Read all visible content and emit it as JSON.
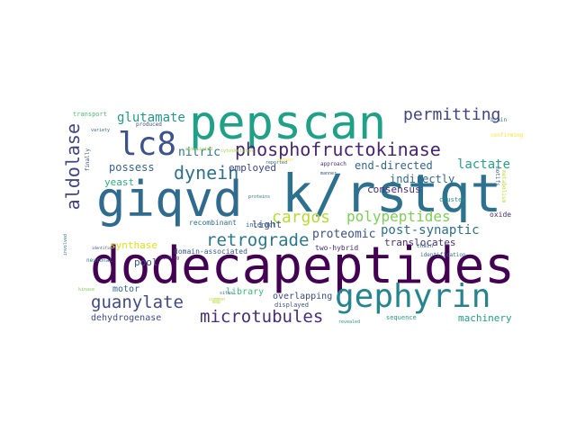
{
  "words": [
    {
      "text": "dodecapeptides",
      "color": "#440154"
    },
    {
      "text": "k/rstqt",
      "color": "#2c728e"
    },
    {
      "text": "giqvd",
      "color": "#2f6b8e"
    },
    {
      "text": "pepscan",
      "color": "#1fa187"
    },
    {
      "text": "gephyrin",
      "color": "#25858e"
    },
    {
      "text": "lc8",
      "color": "#3b528b"
    },
    {
      "text": "phosphofructokinase",
      "color": "#482475"
    },
    {
      "text": "aldolase",
      "color": "#414487"
    },
    {
      "text": "microtubules",
      "color": "#472d7b"
    },
    {
      "text": "retrograde",
      "color": "#2a788e"
    },
    {
      "text": "guanylate",
      "color": "#3e4a89"
    },
    {
      "text": "dynein",
      "color": "#2c728e"
    },
    {
      "text": "cargos",
      "color": "#b5de2b"
    },
    {
      "text": "permitting",
      "color": "#414487"
    },
    {
      "text": "polypeptides",
      "color": "#7ad151"
    },
    {
      "text": "glutamate",
      "color": "#1f9a8a"
    },
    {
      "text": "end-directed",
      "color": "#32648e"
    },
    {
      "text": "lactate",
      "color": "#22a785"
    },
    {
      "text": "post-synaptic",
      "color": "#2d708e"
    },
    {
      "text": "proteomic",
      "color": "#3b528b"
    },
    {
      "text": "nitric",
      "color": "#2a788e"
    },
    {
      "text": "possess",
      "color": "#33638d"
    },
    {
      "text": "employed",
      "color": "#3e4989"
    },
    {
      "text": "indirectly",
      "color": "#31688e"
    },
    {
      "text": "consensus",
      "color": "#472c7a"
    },
    {
      "text": "translocates",
      "color": "#46327e"
    },
    {
      "text": "synthase",
      "color": "#dde318"
    },
    {
      "text": "pool",
      "color": "#3b528b"
    },
    {
      "text": "yeast",
      "color": "#2db27d"
    },
    {
      "text": "light",
      "color": "#3e4a89"
    },
    {
      "text": "motor",
      "color": "#31688e"
    },
    {
      "text": "library",
      "color": "#3bbb75"
    },
    {
      "text": "overlapping",
      "color": "#3e4989"
    },
    {
      "text": "machinery",
      "color": "#1fa088"
    },
    {
      "text": "dehydrogenase",
      "color": "#3d4e8a"
    },
    {
      "text": "two-hybrid",
      "color": "#472a7a"
    },
    {
      "text": "domain-associated",
      "color": "#365c8d"
    },
    {
      "text": "recombinant",
      "color": "#2e6e8e"
    },
    {
      "text": "interact",
      "color": "#32648e"
    },
    {
      "text": "displayed",
      "color": "#3b528b"
    },
    {
      "text": "sequence",
      "color": "#1f9e89"
    },
    {
      "text": "oxide",
      "color": "#472c7a"
    },
    {
      "text": "cluster",
      "color": "#21918c"
    },
    {
      "text": "approach",
      "color": "#482878"
    },
    {
      "text": "manner",
      "color": "#3b528b"
    },
    {
      "text": "chain",
      "color": "#31688e"
    },
    {
      "text": "identification",
      "color": "#2d708e"
    },
    {
      "text": "motifs",
      "color": "#355f8d"
    },
    {
      "text": "metabolism",
      "color": "#bddf26"
    },
    {
      "text": "brain",
      "color": "#2c728e"
    },
    {
      "text": "confirming",
      "color": "#fde725"
    },
    {
      "text": "transport",
      "color": "#4ac16d"
    },
    {
      "text": "produced",
      "color": "#3b528b"
    },
    {
      "text": "variety",
      "color": "#31688e"
    },
    {
      "text": "finally",
      "color": "#3e4a89"
    },
    {
      "text": "neuronal",
      "color": "#2a788e"
    },
    {
      "text": "binding",
      "color": "#482878"
    },
    {
      "text": "identified",
      "color": "#3e4989"
    },
    {
      "text": "proteins",
      "color": "#2a788e"
    },
    {
      "text": "reported",
      "color": "#32648e"
    },
    {
      "text": "sites",
      "color": "#31688e"
    },
    {
      "text": "map",
      "color": "#b5de2b"
    },
    {
      "text": "revealed",
      "color": "#1f9a8a"
    },
    {
      "text": "kinase",
      "color": "#7ad151"
    },
    {
      "text": "involved",
      "color": "#2a788e"
    },
    {
      "text": "cytoskeleton",
      "color": "#a0da39"
    },
    {
      "text": "associated",
      "color": "#8fd744"
    },
    {
      "text": "sensor",
      "color": "#fde725"
    },
    {
      "text": "common",
      "color": "#b5de2b"
    }
  ]
}
